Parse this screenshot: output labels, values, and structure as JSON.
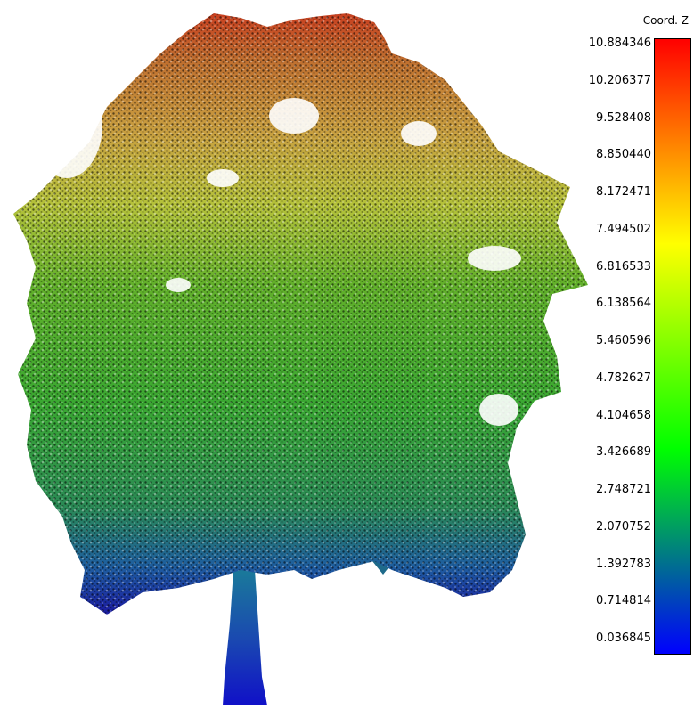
{
  "viewer": {
    "point_cloud": {
      "subject": "tree",
      "color_scale": "Coord. Z"
    },
    "scalebar": {
      "title": "Coord. Z",
      "min": 0.036845,
      "max": 10.884346,
      "colors": [
        "#0000ff",
        "#00ff00",
        "#ffff00",
        "#ff0000"
      ],
      "ticks": [
        "10.884346",
        "10.206377",
        "9.528408",
        "8.850440",
        "8.172471",
        "7.494502",
        "6.816533",
        "6.138564",
        "5.460596",
        "4.782627",
        "4.104658",
        "3.426689",
        "2.748721",
        "2.070752",
        "1.392783",
        "0.714814",
        "0.036845"
      ]
    }
  }
}
